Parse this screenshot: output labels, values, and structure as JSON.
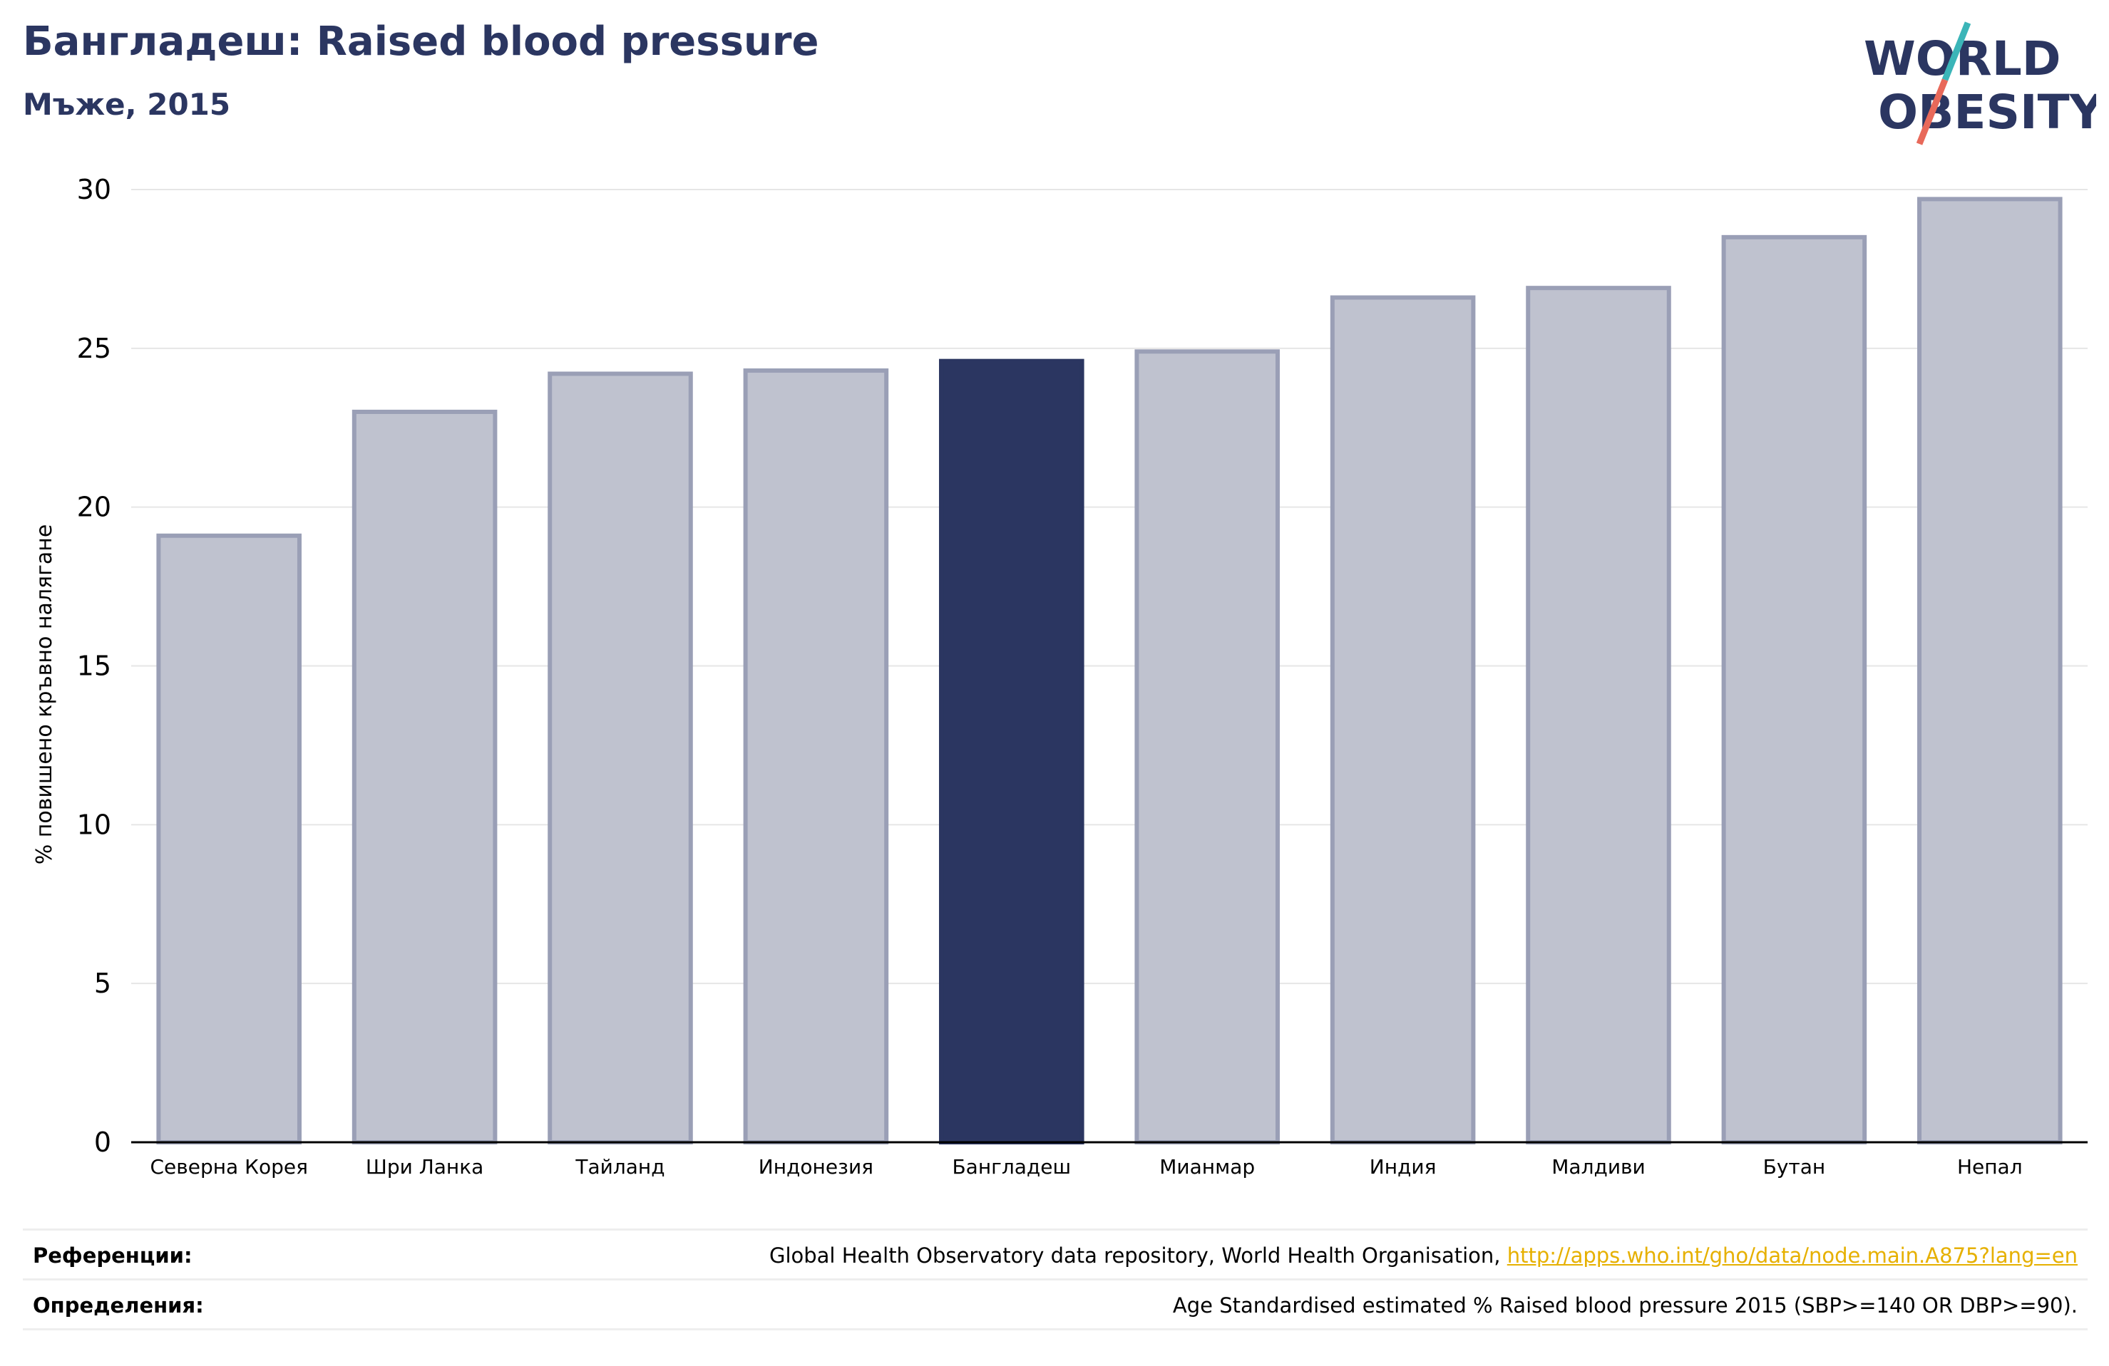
{
  "header": {
    "title": "Бангладеш: Raised blood pressure",
    "subtitle": "Мъже, 2015"
  },
  "logo": {
    "line1": "WORLD",
    "line2": "OBESITY",
    "text_color": "#2b3661",
    "slash_top_color": "#3bb5b8",
    "slash_bottom_color": "#e8695a"
  },
  "chart_data": {
    "type": "bar",
    "ylabel": "% повишено кръвно налягане",
    "ylim": [
      0,
      30
    ],
    "yticks": [
      0,
      5,
      10,
      15,
      20,
      25,
      30
    ],
    "grid": true,
    "categories": [
      "Северна Корея",
      "Шри Ланка",
      "Тайланд",
      "Индонезия",
      "Бангладеш",
      "Мианмар",
      "Индия",
      "Малдиви",
      "Бутан",
      "Непал"
    ],
    "values": [
      19.1,
      23.0,
      24.2,
      24.3,
      24.6,
      24.9,
      26.6,
      26.9,
      28.5,
      29.7
    ],
    "highlight": "Бангладеш",
    "colors": {
      "default_fill": "#bfc2cf",
      "default_stroke": "#9a9fb6",
      "highlight_fill": "#2b3661"
    }
  },
  "footer": {
    "references_label": "Референции:",
    "references_text": "Global Health Observatory data repository, World Health Organisation,",
    "references_link": "http://apps.who.int/gho/data/node.main.A875?lang=en",
    "definitions_label": "Определения:",
    "definitions_text": "Age Standardised estimated % Raised blood pressure 2015 (SBP>=140 OR DBP>=90)."
  }
}
